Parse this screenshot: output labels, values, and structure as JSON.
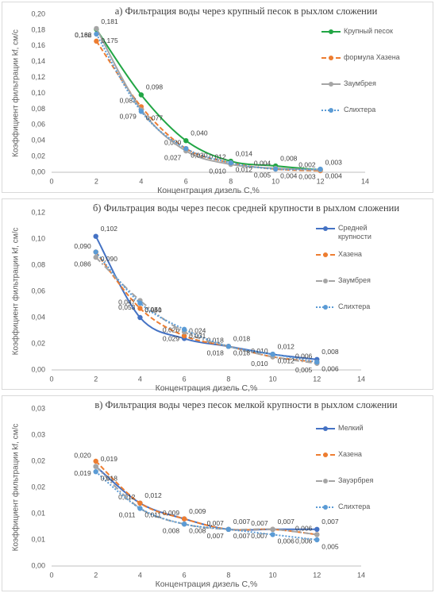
{
  "chart_data": [
    {
      "type": "line",
      "title": "а) Фильтрация  воды через крупный песок в рыхлом сложении",
      "x_label": "Концентрация дизель С,%",
      "y_label": "Коэффициент фильтрации kf, см/с",
      "x": [
        2,
        4,
        6,
        8,
        10,
        12
      ],
      "xlim": [
        0,
        14
      ],
      "xticks": [
        0,
        2,
        4,
        6,
        8,
        10,
        12,
        14
      ],
      "ylim": [
        0,
        0.2
      ],
      "yticks": [
        {
          "value": 0,
          "label": "0,00"
        },
        {
          "value": 0.02,
          "label": "0,02"
        },
        {
          "value": 0.04,
          "label": "0,04"
        },
        {
          "value": 0.06,
          "label": "0,06"
        },
        {
          "value": 0.08,
          "label": "0,08"
        },
        {
          "value": 0.1,
          "label": "0,10"
        },
        {
          "value": 0.12,
          "label": "0,12"
        },
        {
          "value": 0.14,
          "label": "0,14"
        },
        {
          "value": 0.16,
          "label": "0,16"
        },
        {
          "value": 0.18,
          "label": "0,18"
        },
        {
          "value": 0.2,
          "label": "0,20"
        }
      ],
      "grid": false,
      "legend": "right",
      "series": [
        {
          "name": "Крупный песок",
          "color": "#22a645",
          "dash": "solid",
          "values": [
            0.181,
            0.098,
            0.04,
            0.014,
            0.008,
            0.003
          ],
          "value_labels": [
            "0,181",
            "0,098",
            "0,040",
            "0,014",
            "0,008",
            "0,003"
          ]
        },
        {
          "name": "формула Хазена",
          "color": "#ed7d31",
          "dash": "dashed",
          "values": [
            0.166,
            0.083,
            0.03,
            0.012,
            0.004,
            0.002
          ],
          "value_labels": [
            "0,166",
            "0,083",
            "0,030",
            "0,012",
            "0,004",
            "0,002"
          ]
        },
        {
          "name": "Заумбрея",
          "color": "#a5a5a5",
          "dash": "solid",
          "values": [
            0.182,
            0.079,
            0.027,
            0.01,
            0.005,
            0.003
          ],
          "value_labels": [
            "0,182",
            "0,079",
            "0,027",
            "0,010",
            "0,005",
            "0,003"
          ]
        },
        {
          "name": "Слихтера",
          "color": "#5b9bd5",
          "dash": "dotted",
          "values": [
            0.175,
            0.077,
            0.03,
            0.012,
            0.004,
            0.004
          ],
          "value_labels": [
            "0,175",
            "0,077",
            "0,030",
            "0,012",
            "0,004",
            "0,004"
          ]
        }
      ]
    },
    {
      "type": "line",
      "title": "б) Фильтрация  воды через песок средней крупности в рыхлом сложении",
      "x_label": "Концентрация дизель С,%",
      "y_label": "Коэффициент фильтрации kf, см/с",
      "x": [
        2,
        4,
        6,
        8,
        10,
        12
      ],
      "xlim": [
        0,
        14
      ],
      "xticks": [
        0,
        2,
        4,
        6,
        8,
        10,
        12,
        14
      ],
      "ylim": [
        0,
        0.12
      ],
      "yticks": [
        {
          "value": 0,
          "label": "0,00"
        },
        {
          "value": 0.02,
          "label": "0,02"
        },
        {
          "value": 0.04,
          "label": "0,04"
        },
        {
          "value": 0.06,
          "label": "0,06"
        },
        {
          "value": 0.08,
          "label": "0,08"
        },
        {
          "value": 0.1,
          "label": "0,10"
        },
        {
          "value": 0.12,
          "label": "0,12"
        }
      ],
      "grid": false,
      "legend": "right",
      "series": [
        {
          "name": "Средней крупности",
          "color": "#4472c4",
          "dash": "solid",
          "values": [
            0.102,
            0.04,
            0.024,
            0.018,
            0.012,
            0.008
          ],
          "value_labels": [
            "0,102",
            "0,040",
            "0,024",
            "0,018",
            "0,012",
            "0,008"
          ]
        },
        {
          "name": "Хазена",
          "color": "#ed7d31",
          "dash": "dashed",
          "values": [
            0.09,
            0.047,
            0.026,
            0.018,
            0.01,
            0.006
          ],
          "value_labels": [
            "0,090",
            "0,047",
            "0,026",
            "0,018",
            "0,010",
            "0,006"
          ]
        },
        {
          "name": "Заумбрея",
          "color": "#a5a5a5",
          "dash": "dashdot",
          "values": [
            0.086,
            0.053,
            0.029,
            0.018,
            0.01,
            0.005
          ],
          "value_labels": [
            "0,086",
            "0,053",
            "0,029",
            "0,018",
            "0,010",
            "0,005"
          ]
        },
        {
          "name": "Слихтера",
          "color": "#5b9bd5",
          "dash": "dotted",
          "values": [
            0.09,
            0.051,
            0.031,
            0.018,
            0.012,
            0.006
          ],
          "value_labels": [
            "0,090",
            "0,051",
            "0,031",
            "0,018",
            "0,012",
            "0,006"
          ]
        }
      ]
    },
    {
      "type": "line",
      "title": "в) Фильтрация  воды через песок мелкой крупности в рыхлом сложении",
      "x_label": "Концентрация дизель С,%",
      "y_label": "Коэффициент фильтрации kf, см/с",
      "x": [
        2,
        4,
        6,
        8,
        10,
        12
      ],
      "xlim": [
        0,
        14
      ],
      "xticks": [
        0,
        2,
        4,
        6,
        8,
        10,
        12,
        14
      ],
      "ylim": [
        0,
        0.03
      ],
      "yticks": [
        {
          "value": 0,
          "label": "0,00"
        },
        {
          "value": 0.005,
          "label": "0,01"
        },
        {
          "value": 0.01,
          "label": "0,01"
        },
        {
          "value": 0.015,
          "label": "0,02"
        },
        {
          "value": 0.02,
          "label": "0,02"
        },
        {
          "value": 0.025,
          "label": "0,03"
        },
        {
          "value": 0.03,
          "label": "0,03"
        }
      ],
      "grid": false,
      "legend": "right",
      "series": [
        {
          "name": "Мелкий",
          "color": "#4472c4",
          "dash": "solid",
          "values": [
            0.019,
            0.012,
            0.009,
            0.007,
            0.007,
            0.007
          ],
          "value_labels": [
            "0,019",
            "0,012",
            "0,009",
            "0,007",
            "0,007",
            "0,007"
          ]
        },
        {
          "name": "Хазена",
          "color": "#ed7d31",
          "dash": "dashed",
          "values": [
            0.02,
            0.012,
            0.009,
            0.007,
            0.007,
            0.006
          ],
          "value_labels": [
            "0,020",
            "0,012",
            "0,009",
            "0,007",
            "0,007",
            "0,006"
          ]
        },
        {
          "name": "Зауэрбрея",
          "color": "#a5a5a5",
          "dash": "dashdot",
          "values": [
            0.019,
            0.011,
            0.008,
            0.007,
            0.007,
            0.006
          ],
          "value_labels": [
            "0,019",
            "0,011",
            "0,008",
            "0,007",
            "0,007",
            "0,006"
          ]
        },
        {
          "name": "Слихтера",
          "color": "#5b9bd5",
          "dash": "dotted",
          "values": [
            0.018,
            0.011,
            0.008,
            0.007,
            0.006,
            0.005
          ],
          "value_labels": [
            "0,018",
            "0,011",
            "0,008",
            "0,007",
            "0,006",
            "0,005"
          ]
        }
      ]
    }
  ]
}
